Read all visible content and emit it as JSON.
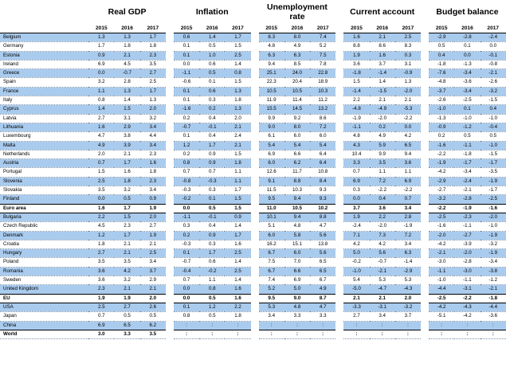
{
  "header": {
    "groups": [
      "Real GDP",
      "Inflation",
      "Unemployment rate",
      "Current account",
      "Budget balance"
    ],
    "years": [
      "2015",
      "2016",
      "2017"
    ]
  },
  "shading": {
    "row_color": "#a9cbee"
  },
  "rows": [
    {
      "name": "Belgium",
      "shade": true,
      "values": [
        "1.3",
        "1.3",
        "1.7",
        "0.6",
        "1.4",
        "1.7",
        "8.3",
        "8.0",
        "7.4",
        "1.6",
        "2.1",
        "2.5",
        "-2.9",
        "-2.8",
        "-2.4"
      ]
    },
    {
      "name": "Germany",
      "shade": false,
      "values": [
        "1.7",
        "1.8",
        "1.8",
        "0.1",
        "0.5",
        "1.5",
        "4.8",
        "4.9",
        "5.2",
        "8.8",
        "8.6",
        "8.3",
        "0.5",
        "0.1",
        "0.0"
      ]
    },
    {
      "name": "Estonia",
      "shade": true,
      "values": [
        "0.9",
        "2.1",
        "2.3",
        "0.1",
        "1.0",
        "2.5",
        "6.3",
        "6.3",
        "7.5",
        "1.9",
        "1.6",
        "0.3",
        "0.4",
        "0.0",
        "-0.1"
      ]
    },
    {
      "name": "Ireland",
      "shade": false,
      "values": [
        "6.9",
        "4.5",
        "3.5",
        "0.0",
        "0.6",
        "1.4",
        "9.4",
        "8.5",
        "7.8",
        "3.6",
        "3.7",
        "3.1",
        "-1.8",
        "-1.3",
        "-0.8"
      ]
    },
    {
      "name": "Greece",
      "shade": true,
      "values": [
        "0.0",
        "-0.7",
        "2.7",
        "-1.1",
        "0.5",
        "0.8",
        "25.1",
        "24.0",
        "22.8",
        "-1.8",
        "-1.4",
        "-0.9",
        "-7.6",
        "-3.4",
        "-2.1"
      ]
    },
    {
      "name": "Spain",
      "shade": false,
      "values": [
        "3.2",
        "2.8",
        "2.5",
        "-0.6",
        "0.1",
        "1.5",
        "22.3",
        "20.4",
        "18.9",
        "1.5",
        "1.4",
        "1.3",
        "-4.8",
        "-3.6",
        "-2.6"
      ]
    },
    {
      "name": "France",
      "shade": true,
      "values": [
        "1.1",
        "1.3",
        "1.7",
        "0.1",
        "0.6",
        "1.3",
        "10.5",
        "10.5",
        "10.3",
        "-1.4",
        "-1.5",
        "-2.0",
        "-3.7",
        "-3.4",
        "-3.2"
      ]
    },
    {
      "name": "Italy",
      "shade": false,
      "values": [
        "0.8",
        "1.4",
        "1.3",
        "0.1",
        "0.3",
        "1.8",
        "11.9",
        "11.4",
        "11.2",
        "2.2",
        "2.1",
        "2.1",
        "-2.6",
        "-2.5",
        "-1.5"
      ]
    },
    {
      "name": "Cyprus",
      "shade": true,
      "values": [
        "1.4",
        "1.5",
        "2.0",
        "-1.6",
        "0.2",
        "1.3",
        "15.5",
        "14.5",
        "13.2",
        "-4.8",
        "-4.9",
        "-5.3",
        "-1.0",
        "0.1",
        "0.4"
      ]
    },
    {
      "name": "Latvia",
      "shade": false,
      "values": [
        "2.7",
        "3.1",
        "3.2",
        "0.2",
        "0.4",
        "2.0",
        "9.9",
        "9.2",
        "8.6",
        "-1.9",
        "-2.0",
        "-2.2",
        "-1.3",
        "-1.0",
        "-1.0"
      ]
    },
    {
      "name": "Lithuania",
      "shade": true,
      "values": [
        "1.6",
        "2.9",
        "3.4",
        "-0.7",
        "-0.1",
        "2.1",
        "9.0",
        "8.0",
        "7.2",
        "-1.1",
        "0.2",
        "0.0",
        "-0.9",
        "-1.2",
        "-0.4"
      ]
    },
    {
      "name": "Luxembourg",
      "shade": false,
      "values": [
        "4.7",
        "3.8",
        "4.4",
        "0.1",
        "0.4",
        "2.4",
        "6.1",
        "6.0",
        "6.0",
        "4.8",
        "4.9",
        "4.2",
        "0.2",
        "0.5",
        "0.5"
      ]
    },
    {
      "name": "Malta",
      "shade": true,
      "values": [
        "4.9",
        "3.9",
        "3.4",
        "1.2",
        "1.7",
        "2.1",
        "5.4",
        "5.4",
        "5.4",
        "4.3",
        "5.9",
        "6.5",
        "-1.6",
        "-1.1",
        "-1.0"
      ]
    },
    {
      "name": "Netherlands",
      "shade": false,
      "values": [
        "2.0",
        "2.1",
        "2.3",
        "0.2",
        "0.9",
        "1.5",
        "6.9",
        "6.6",
        "6.4",
        "10.4",
        "9.9",
        "9.4",
        "-2.2",
        "-1.8",
        "-1.5"
      ]
    },
    {
      "name": "Austria",
      "shade": true,
      "values": [
        "0.7",
        "1.7",
        "1.6",
        "0.8",
        "0.9",
        "1.8",
        "6.0",
        "6.2",
        "6.4",
        "3.3",
        "3.5",
        "3.6",
        "-1.9",
        "-1.7",
        "-1.7"
      ]
    },
    {
      "name": "Portugal",
      "shade": false,
      "values": [
        "1.5",
        "1.6",
        "1.8",
        "0.7",
        "0.7",
        "1.1",
        "12.6",
        "11.7",
        "10.8",
        "0.7",
        "1.1",
        "1.1",
        "-4.2",
        "-3.4",
        "-3.5"
      ]
    },
    {
      "name": "Slovenia",
      "shade": true,
      "values": [
        "2.5",
        "1.8",
        "2.3",
        "-0.8",
        "-0.3",
        "1.1",
        "9.1",
        "8.8",
        "8.4",
        "6.9",
        "7.2",
        "6.9",
        "-2.9",
        "-2.4",
        "-1.9"
      ]
    },
    {
      "name": "Slovakia",
      "shade": false,
      "values": [
        "3.5",
        "3.2",
        "3.4",
        "-0.3",
        "0.3",
        "1.7",
        "11.5",
        "10.3",
        "9.3",
        "0.3",
        "-2.2",
        "-2.2",
        "-2.7",
        "-2.1",
        "-1.7"
      ]
    },
    {
      "name": "Finland",
      "shade": true,
      "values": [
        "0.0",
        "0.5",
        "0.9",
        "-0.2",
        "0.1",
        "1.5",
        "9.5",
        "9.4",
        "9.3",
        "0.0",
        "0.4",
        "0.7",
        "-3.2",
        "-2.8",
        "-2.5"
      ]
    },
    {
      "name": "Euro area",
      "shade": false,
      "bold": true,
      "values": [
        "1.6",
        "1.7",
        "1.9",
        "0.0",
        "0.5",
        "1.5",
        "11.0",
        "10.5",
        "10.2",
        "3.7",
        "3.6",
        "3.4",
        "-2.2",
        "-1.9",
        "-1.6"
      ]
    },
    {
      "name": "Bulgaria",
      "shade": true,
      "values": [
        "2.2",
        "1.5",
        "2.0",
        "-1.1",
        "-0.1",
        "0.9",
        "10.1",
        "9.4",
        "8.8",
        "1.9",
        "2.2",
        "2.8",
        "-2.5",
        "-2.3",
        "-2.0"
      ]
    },
    {
      "name": "Czech Republic",
      "shade": false,
      "values": [
        "4.5",
        "2.3",
        "2.7",
        "0.3",
        "0.4",
        "1.4",
        "5.1",
        "4.8",
        "4.7",
        "-2.4",
        "-2.0",
        "-1.9",
        "-1.6",
        "-1.1",
        "-1.0"
      ]
    },
    {
      "name": "Denmark",
      "shade": true,
      "values": [
        "1.2",
        "1.7",
        "1.9",
        "0.2",
        "0.9",
        "1.7",
        "6.0",
        "5.8",
        "5.6",
        "7.1",
        "7.3",
        "7.2",
        "-2.0",
        "-2.7",
        "-1.9"
      ]
    },
    {
      "name": "Croatia",
      "shade": false,
      "values": [
        "1.8",
        "2.1",
        "2.1",
        "-0.3",
        "0.3",
        "1.6",
        "16.2",
        "15.1",
        "13.8",
        "4.2",
        "4.2",
        "3.4",
        "-4.2",
        "-3.9",
        "-3.2"
      ]
    },
    {
      "name": "Hungary",
      "shade": true,
      "values": [
        "2.7",
        "2.1",
        "2.5",
        "0.1",
        "1.7",
        "2.5",
        "6.7",
        "6.0",
        "5.6",
        "5.0",
        "5.6",
        "6.3",
        "-2.1",
        "-2.0",
        "-1.9"
      ]
    },
    {
      "name": "Poland",
      "shade": false,
      "values": [
        "3.5",
        "3.5",
        "3.4",
        "-0.7",
        "0.6",
        "1.4",
        "7.5",
        "7.0",
        "6.5",
        "-0.2",
        "-0.7",
        "-1.4",
        "-3.0",
        "-2.8",
        "-3.4"
      ]
    },
    {
      "name": "Romania",
      "shade": true,
      "values": [
        "3.6",
        "4.2",
        "3.7",
        "-0.4",
        "-0.2",
        "2.5",
        "6.7",
        "6.6",
        "6.5",
        "-1.0",
        "-2.1",
        "-2.9",
        "-1.1",
        "-3.0",
        "-3.8"
      ]
    },
    {
      "name": "Sweden",
      "shade": false,
      "values": [
        "3.6",
        "3.2",
        "2.9",
        "0.7",
        "1.1",
        "1.4",
        "7.4",
        "6.9",
        "6.7",
        "5.4",
        "5.3",
        "5.3",
        "-1.0",
        "-1.1",
        "-1.2"
      ]
    },
    {
      "name": "United Kingdom",
      "shade": true,
      "values": [
        "2.3",
        "2.1",
        "2.1",
        "0.0",
        "0.8",
        "1.6",
        "5.2",
        "5.0",
        "4.9",
        "-5.0",
        "-4.7",
        "-4.3",
        "-4.4",
        "-3.1",
        "-2.1"
      ]
    },
    {
      "name": "EU",
      "shade": false,
      "bold": true,
      "values": [
        "1.9",
        "1.9",
        "2.0",
        "0.0",
        "0.5",
        "1.6",
        "9.5",
        "9.0",
        "8.7",
        "2.1",
        "2.1",
        "2.0",
        "-2.5",
        "-2.2",
        "-1.8"
      ]
    },
    {
      "name": "USA",
      "shade": true,
      "values": [
        "2.5",
        "2.7",
        "2.6",
        "0.1",
        "1.2",
        "2.2",
        "5.3",
        "4.8",
        "4.7",
        "-3.3",
        "-3.1",
        "-3.2",
        "-4.2",
        "-4.3",
        "-4.4"
      ]
    },
    {
      "name": "Japan",
      "shade": false,
      "values": [
        "0.7",
        "0.5",
        "0.5",
        "0.8",
        "0.5",
        "1.8",
        "3.4",
        "3.3",
        "3.3",
        "2.7",
        "3.4",
        "3.7",
        "-5.1",
        "-4.2",
        "-3.6"
      ]
    },
    {
      "name": "China",
      "shade": true,
      "values": [
        "6.9",
        "6.5",
        "6.2",
        ":",
        ":",
        ":",
        ":",
        ":",
        ":",
        ":",
        ":",
        ":",
        ":",
        ":",
        ":"
      ]
    },
    {
      "name": "World",
      "shade": false,
      "bold": true,
      "values": [
        "3.0",
        "3.3",
        "3.5",
        ":",
        ":",
        ":",
        ":",
        ":",
        ":",
        ":",
        ":",
        ":",
        ":",
        ":",
        ":"
      ]
    }
  ]
}
